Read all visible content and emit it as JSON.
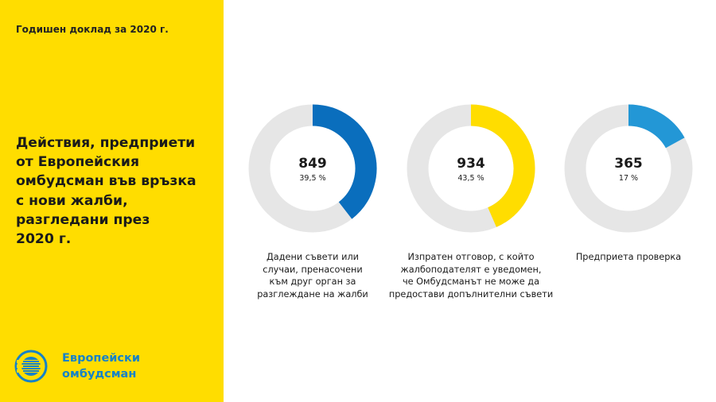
{
  "header": {
    "report_label": "Годишен доклад за 2020 г."
  },
  "title_lines": [
    "Действия, предприети",
    "от Европейския",
    "омбудсман във връзка",
    "с нови жалби,",
    "разгледани през",
    "2020 г."
  ],
  "logo": {
    "icon": "european-ombudsman-logo-icon",
    "lines": [
      "Европейски",
      "омбудсман"
    ]
  },
  "colors": {
    "sidebar": "#ffdd00",
    "track": "#e6e6e6",
    "brand": "#1582c8"
  },
  "chart_data": {
    "type": "pie",
    "style": "donut",
    "slices": [
      {
        "value": 849,
        "value_label": "849",
        "percent": 39.5,
        "percent_label": "39,5 %",
        "color": "#0a6ebd",
        "caption_lines": [
          "Дадени съвети или",
          "случаи, пренасочени",
          "към друг орган за",
          "разглеждане на жалби"
        ]
      },
      {
        "value": 934,
        "value_label": "934",
        "percent": 43.5,
        "percent_label": "43,5 %",
        "color": "#ffdd00",
        "caption_lines": [
          "Изпратен отговор, с който",
          "жалбоподателят е уведомен,",
          "че Омбудсманът не може да",
          "предостави допълнителни съвети"
        ]
      },
      {
        "value": 365,
        "value_label": "365",
        "percent": 17,
        "percent_label": "17 %",
        "color": "#2397d6",
        "caption_lines": [
          "Предприета проверка"
        ]
      }
    ]
  }
}
